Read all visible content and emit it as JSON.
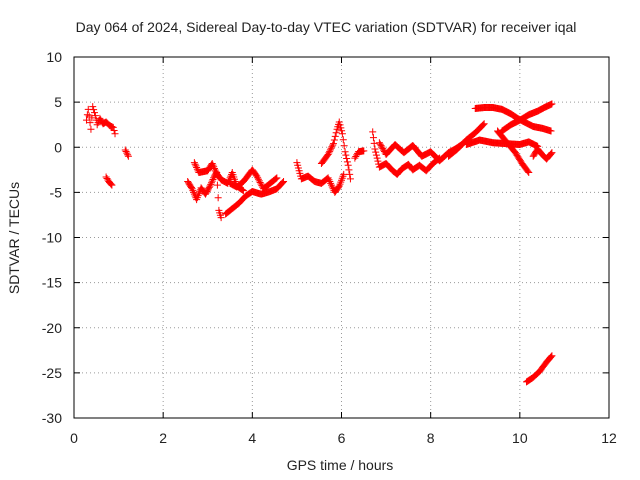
{
  "chart_data": {
    "type": "scatter",
    "title": "Day 064 of 2024, Sidereal Day-to-day VTEC variation (SDTVAR) for receiver iqal",
    "xlabel": "GPS time / hours",
    "ylabel": "SDTVAR / TECUs",
    "xlim": [
      0,
      12
    ],
    "ylim": [
      -30,
      10
    ],
    "xticks": [
      0,
      2,
      4,
      6,
      8,
      10,
      12
    ],
    "yticks": [
      -30,
      -25,
      -20,
      -15,
      -10,
      -5,
      0,
      5,
      10
    ],
    "grid": true,
    "marker": "+",
    "color": "#ff0000",
    "series": [
      {
        "name": "SDTVAR",
        "segments": [
          [
            [
              0.28,
              3.0
            ],
            [
              0.32,
              4.2
            ],
            [
              0.38,
              2.0
            ],
            [
              0.42,
              4.5
            ],
            [
              0.48,
              3.5
            ],
            [
              0.52,
              2.5
            ],
            [
              0.58,
              3.2
            ],
            [
              0.65,
              2.6
            ],
            [
              0.72,
              2.8
            ],
            [
              0.8,
              2.4
            ],
            [
              0.88,
              2.2
            ],
            [
              0.92,
              1.5
            ]
          ],
          [
            [
              0.72,
              -3.3
            ],
            [
              0.78,
              -3.8
            ],
            [
              0.85,
              -4.2
            ]
          ],
          [
            [
              1.15,
              -0.3
            ],
            [
              1.22,
              -1.0
            ]
          ],
          [
            [
              2.55,
              -3.8
            ],
            [
              2.65,
              -4.6
            ],
            [
              2.75,
              -5.8
            ],
            [
              2.85,
              -4.5
            ],
            [
              2.95,
              -5.2
            ],
            [
              3.05,
              -4.3
            ],
            [
              3.15,
              -3.2
            ],
            [
              3.2,
              -2.8
            ],
            [
              3.25,
              -7.0
            ],
            [
              3.3,
              -7.8
            ]
          ],
          [
            [
              2.7,
              -1.7
            ],
            [
              2.8,
              -2.8
            ],
            [
              3.0,
              -2.6
            ],
            [
              3.1,
              -1.8
            ],
            [
              3.2,
              -2.9
            ],
            [
              3.3,
              -3.6
            ],
            [
              3.45,
              -4.0
            ],
            [
              3.55,
              -2.8
            ],
            [
              3.65,
              -4.3
            ],
            [
              3.8,
              -4.8
            ]
          ],
          [
            [
              3.4,
              -7.4
            ],
            [
              3.55,
              -6.8
            ],
            [
              3.7,
              -6.2
            ],
            [
              3.85,
              -5.4
            ],
            [
              4.0,
              -4.9
            ],
            [
              4.2,
              -5.2
            ],
            [
              4.4,
              -4.9
            ],
            [
              4.55,
              -4.6
            ],
            [
              4.7,
              -3.8
            ]
          ],
          [
            [
              3.5,
              -4.0
            ],
            [
              3.65,
              -4.4
            ],
            [
              3.8,
              -3.8
            ],
            [
              4.0,
              -2.5
            ],
            [
              4.1,
              -3.2
            ],
            [
              4.25,
              -4.6
            ],
            [
              4.4,
              -4.0
            ],
            [
              4.55,
              -3.4
            ]
          ],
          [
            [
              5.0,
              -1.7
            ],
            [
              5.1,
              -3.5
            ],
            [
              5.25,
              -3.2
            ],
            [
              5.4,
              -3.8
            ],
            [
              5.55,
              -4.0
            ],
            [
              5.7,
              -3.4
            ],
            [
              5.85,
              -5.0
            ],
            [
              5.95,
              -4.3
            ],
            [
              6.05,
              -3.0
            ]
          ],
          [
            [
              5.55,
              -1.8
            ],
            [
              5.7,
              -0.8
            ],
            [
              5.82,
              0.4
            ],
            [
              5.9,
              2.0
            ],
            [
              5.95,
              2.8
            ],
            [
              6.02,
              1.5
            ],
            [
              6.08,
              -0.5
            ],
            [
              6.15,
              -2.0
            ],
            [
              6.2,
              -3.5
            ]
          ],
          [
            [
              6.3,
              -1.2
            ],
            [
              6.38,
              -0.5
            ],
            [
              6.5,
              -0.4
            ]
          ],
          [
            [
              6.7,
              1.7
            ],
            [
              6.75,
              -0.2
            ],
            [
              6.85,
              -2.2
            ],
            [
              7.0,
              -1.8
            ],
            [
              7.15,
              -2.6
            ],
            [
              7.25,
              -3.0
            ],
            [
              7.35,
              -2.4
            ],
            [
              7.5,
              -1.9
            ],
            [
              7.6,
              -2.5
            ],
            [
              7.75,
              -2.0
            ],
            [
              7.9,
              -2.6
            ],
            [
              8.05,
              -1.8
            ],
            [
              8.2,
              -1.2
            ]
          ],
          [
            [
              6.85,
              0.5
            ],
            [
              7.0,
              -0.8
            ],
            [
              7.2,
              0.3
            ],
            [
              7.4,
              -0.6
            ],
            [
              7.6,
              0.2
            ],
            [
              7.8,
              -1.0
            ],
            [
              8.0,
              -0.5
            ],
            [
              8.2,
              -1.5
            ],
            [
              8.4,
              -0.6
            ],
            [
              8.55,
              -0.2
            ],
            [
              8.7,
              0.3
            ]
          ],
          [
            [
              8.4,
              -1.0
            ],
            [
              8.6,
              -0.2
            ],
            [
              8.8,
              0.8
            ],
            [
              9.0,
              1.6
            ],
            [
              9.2,
              2.6
            ]
          ],
          [
            [
              8.8,
              0.3
            ],
            [
              9.1,
              0.8
            ],
            [
              9.4,
              0.5
            ],
            [
              9.7,
              0.4
            ],
            [
              10.0,
              0.3
            ],
            [
              10.2,
              0.6
            ],
            [
              10.4,
              0.1
            ]
          ],
          [
            [
              9.0,
              4.3
            ],
            [
              9.2,
              4.4
            ],
            [
              9.4,
              4.4
            ],
            [
              9.6,
              4.2
            ],
            [
              9.8,
              3.7
            ],
            [
              9.95,
              3.2
            ],
            [
              10.1,
              2.8
            ],
            [
              10.3,
              2.3
            ],
            [
              10.5,
              2.1
            ],
            [
              10.7,
              1.8
            ]
          ],
          [
            [
              9.6,
              1.8
            ],
            [
              9.8,
              2.5
            ],
            [
              10.0,
              3.0
            ],
            [
              10.2,
              3.6
            ],
            [
              10.4,
              4.0
            ],
            [
              10.55,
              4.4
            ],
            [
              10.72,
              4.8
            ]
          ],
          [
            [
              9.5,
              1.8
            ],
            [
              9.7,
              0.6
            ],
            [
              9.9,
              -0.6
            ],
            [
              10.05,
              -1.8
            ],
            [
              10.2,
              -2.8
            ]
          ],
          [
            [
              10.3,
              -1.0
            ],
            [
              10.4,
              -0.2
            ],
            [
              10.5,
              -0.8
            ],
            [
              10.6,
              -1.3
            ],
            [
              10.72,
              -0.6
            ]
          ],
          [
            [
              10.15,
              -26.0
            ],
            [
              10.3,
              -25.5
            ],
            [
              10.45,
              -24.8
            ],
            [
              10.6,
              -23.8
            ],
            [
              10.72,
              -23.1
            ]
          ]
        ]
      }
    ]
  }
}
